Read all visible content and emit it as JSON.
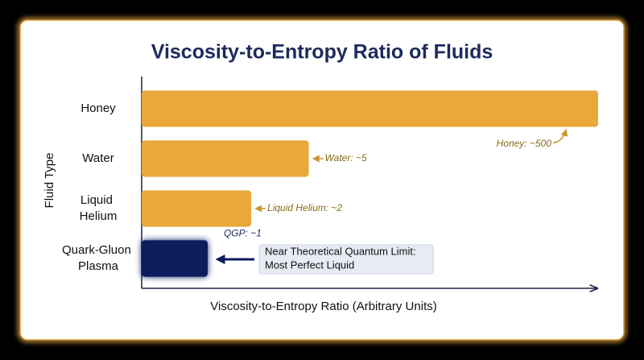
{
  "chart_data": {
    "type": "barh",
    "title": "Viscosity-to-Entropy Ratio of Fluids",
    "x_label": "Viscosity-to-Entropy Ratio (Arbitrary Units)",
    "y_label": "Fluid Type",
    "categories": [
      "Honey",
      "Water",
      "Liquid Helium",
      "Quark-Gluon Plasma"
    ],
    "values": [
      500,
      5,
      2,
      1
    ],
    "value_labels": [
      "Honey: ~500",
      "Water: ~5",
      "Liquid Helium: ~2",
      "QGP: ~1"
    ],
    "colors": [
      "#e8a83c",
      "#e8a83c",
      "#e8a83c",
      "#0c1a5c"
    ],
    "xscale": "log",
    "xlim": [
      0.35,
      500
    ],
    "annotation": "Near Theoretical Quantum Limit: Most Perfect Liquid"
  }
}
